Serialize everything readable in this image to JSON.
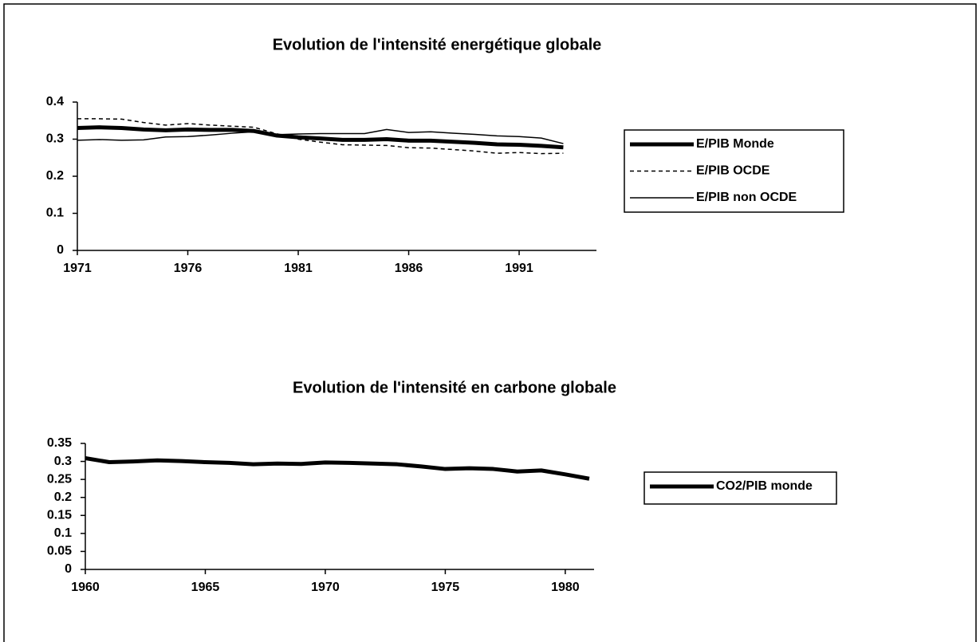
{
  "chart_data": [
    {
      "type": "line",
      "title": "Evolution de l'intensité energétique globale",
      "x": [
        1971,
        1972,
        1973,
        1974,
        1975,
        1976,
        1977,
        1978,
        1979,
        1980,
        1981,
        1982,
        1983,
        1984,
        1985,
        1986,
        1987,
        1988,
        1989,
        1990,
        1991,
        1992,
        1993
      ],
      "series": [
        {
          "name": "E/PIB Monde",
          "color": "#000000",
          "width": 5,
          "dash": "none",
          "values": [
            0.33,
            0.332,
            0.33,
            0.326,
            0.324,
            0.326,
            0.325,
            0.325,
            0.322,
            0.31,
            0.305,
            0.302,
            0.298,
            0.298,
            0.3,
            0.296,
            0.296,
            0.293,
            0.29,
            0.286,
            0.285,
            0.282,
            0.278
          ]
        },
        {
          "name": "E/PIB OCDE",
          "color": "#000000",
          "width": 1.5,
          "dash": "5 4",
          "values": [
            0.355,
            0.355,
            0.354,
            0.345,
            0.338,
            0.342,
            0.338,
            0.335,
            0.332,
            0.315,
            0.3,
            0.292,
            0.285,
            0.284,
            0.283,
            0.277,
            0.276,
            0.272,
            0.268,
            0.262,
            0.264,
            0.261,
            0.262
          ]
        },
        {
          "name": "E/PIB non OCDE",
          "color": "#000000",
          "width": 1.5,
          "dash": "none",
          "values": [
            0.297,
            0.299,
            0.297,
            0.298,
            0.306,
            0.307,
            0.311,
            0.316,
            0.32,
            0.312,
            0.314,
            0.315,
            0.315,
            0.315,
            0.326,
            0.318,
            0.32,
            0.316,
            0.313,
            0.309,
            0.307,
            0.303,
            0.288
          ]
        }
      ],
      "xlim": [
        1971,
        1994.5
      ],
      "xticks": [
        1971,
        1976,
        1981,
        1986,
        1991
      ],
      "ylim": [
        0,
        0.4
      ],
      "yticks": [
        0,
        0.1,
        0.2,
        0.3,
        0.4
      ],
      "grid": false,
      "legend": "right"
    },
    {
      "type": "line",
      "title": "Evolution de l'intensité en carbone globale",
      "x": [
        1960,
        1961,
        1962,
        1963,
        1964,
        1965,
        1966,
        1967,
        1968,
        1969,
        1970,
        1971,
        1972,
        1973,
        1974,
        1975,
        1976,
        1977,
        1978,
        1979,
        1980,
        1981
      ],
      "series": [
        {
          "name": "CO2/PIB monde",
          "color": "#000000",
          "width": 5,
          "dash": "none",
          "values": [
            0.309,
            0.298,
            0.3,
            0.303,
            0.301,
            0.298,
            0.296,
            0.292,
            0.294,
            0.293,
            0.297,
            0.296,
            0.294,
            0.292,
            0.286,
            0.279,
            0.281,
            0.279,
            0.272,
            0.275,
            0.264,
            0.252
          ]
        }
      ],
      "xlim": [
        1960,
        1981.2
      ],
      "xticks": [
        1960,
        1965,
        1970,
        1975,
        1980
      ],
      "ylim": [
        0,
        0.35
      ],
      "yticks": [
        0,
        0.05,
        0.1,
        0.15,
        0.2,
        0.25,
        0.3,
        0.35
      ],
      "grid": false,
      "legend": "right"
    }
  ]
}
